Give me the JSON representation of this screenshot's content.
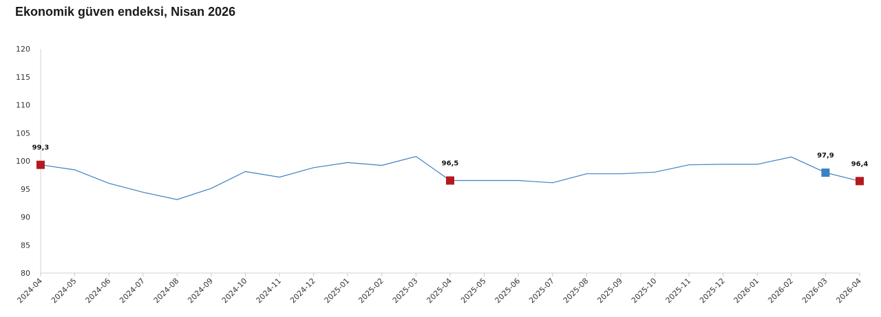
{
  "chart_data": {
    "type": "line",
    "title": "Ekonomik güven endeksi, Nisan 2026",
    "xlabel": "",
    "ylabel": "",
    "ylim": [
      80,
      120
    ],
    "yticks": [
      "80",
      "85",
      "90",
      "95",
      "100",
      "105",
      "110",
      "115",
      "120"
    ],
    "grid": false,
    "categories": [
      "2024-04",
      "2024-05",
      "2024-06",
      "2024-07",
      "2024-08",
      "2024-09",
      "2024-10",
      "2024-11",
      "2024-12",
      "2025-01",
      "2025-02",
      "2025-03",
      "2025-04",
      "2025-05",
      "2025-06",
      "2025-07",
      "2025-08",
      "2025-09",
      "2025-10",
      "2025-11",
      "2025-12",
      "2026-01",
      "2026-02",
      "2026-03",
      "2026-04"
    ],
    "series": [
      {
        "name": "",
        "color": "#3b7fc4",
        "values": [
          99.3,
          98.4,
          96.0,
          94.4,
          93.1,
          95.1,
          98.1,
          97.1,
          98.8,
          99.7,
          99.2,
          100.8,
          96.5,
          96.5,
          96.5,
          96.1,
          97.7,
          97.7,
          98.0,
          99.3,
          99.4,
          99.4,
          100.7,
          97.9,
          96.4
        ]
      }
    ],
    "markers": [
      {
        "index": 0,
        "label": "99,3",
        "color": "#b5191f"
      },
      {
        "index": 12,
        "label": "96,5",
        "color": "#b5191f"
      },
      {
        "index": 23,
        "label": "97,9",
        "color": "#3b7fc4"
      },
      {
        "index": 24,
        "label": "96,4",
        "color": "#b5191f"
      }
    ]
  }
}
